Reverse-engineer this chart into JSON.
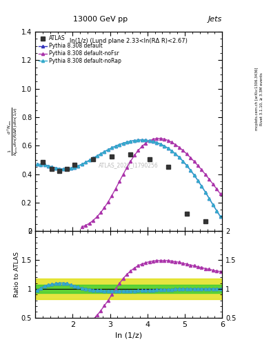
{
  "title": "13000 GeV pp",
  "title_right": "Jets",
  "subplot_title": "ln(1/z) (Lund plane 2.33<ln(RΔ R)<2.67)",
  "xlabel": "ln (1/z)",
  "ylabel_ratio": "Ratio to ATLAS",
  "watermark": "ATLAS_2020_I1790256",
  "rivet_label": "Rivet 3.1.10, ≥ 3.3M events",
  "arxiv_label": "[arXiv:1306.3436]",
  "mcplots_label": "mcplots.cern.ch",
  "ylim_main": [
    0.0,
    1.4
  ],
  "ylim_ratio": [
    0.5,
    2.0
  ],
  "xlim": [
    1.0,
    6.0
  ],
  "yticks_main": [
    0.0,
    0.2,
    0.4,
    0.6,
    0.8,
    1.0,
    1.2,
    1.4
  ],
  "yticks_ratio": [
    0.5,
    1.0,
    1.5,
    2.0
  ],
  "atlas_x": [
    1.2,
    1.45,
    1.65,
    1.85,
    2.05,
    2.55,
    3.05,
    3.55,
    4.05,
    4.55,
    5.05,
    5.55
  ],
  "atlas_y": [
    0.485,
    0.435,
    0.42,
    0.435,
    0.465,
    0.505,
    0.525,
    0.54,
    0.505,
    0.45,
    0.12,
    0.07
  ],
  "atlas_color": "#333333",
  "default_x": [
    1.05,
    1.15,
    1.25,
    1.35,
    1.45,
    1.55,
    1.65,
    1.75,
    1.85,
    1.95,
    2.05,
    2.15,
    2.25,
    2.35,
    2.45,
    2.55,
    2.65,
    2.75,
    2.85,
    2.95,
    3.05,
    3.15,
    3.25,
    3.35,
    3.45,
    3.55,
    3.65,
    3.75,
    3.85,
    3.95,
    4.05,
    4.15,
    4.25,
    4.35,
    4.45,
    4.55,
    4.65,
    4.75,
    4.85,
    4.95,
    5.05,
    5.15,
    5.25,
    5.35,
    5.45,
    5.55,
    5.65,
    5.75,
    5.85,
    5.95
  ],
  "default_y": [
    0.47,
    0.468,
    0.465,
    0.458,
    0.45,
    0.443,
    0.438,
    0.435,
    0.435,
    0.44,
    0.448,
    0.458,
    0.47,
    0.483,
    0.498,
    0.513,
    0.528,
    0.543,
    0.558,
    0.572,
    0.585,
    0.597,
    0.608,
    0.617,
    0.625,
    0.631,
    0.636,
    0.639,
    0.64,
    0.639,
    0.636,
    0.63,
    0.622,
    0.611,
    0.598,
    0.582,
    0.563,
    0.542,
    0.518,
    0.491,
    0.461,
    0.428,
    0.393,
    0.355,
    0.315,
    0.273,
    0.23,
    0.186,
    0.143,
    0.102
  ],
  "default_color": "#3333bb",
  "noFsr_x": [
    2.25,
    2.35,
    2.45,
    2.55,
    2.65,
    2.75,
    2.85,
    2.95,
    3.05,
    3.15,
    3.25,
    3.35,
    3.45,
    3.55,
    3.65,
    3.75,
    3.85,
    3.95,
    4.05,
    4.15,
    4.25,
    4.35,
    4.45,
    4.55,
    4.65,
    4.75,
    4.85,
    4.95,
    5.05,
    5.15,
    5.25,
    5.35,
    5.45,
    5.55,
    5.65,
    5.75,
    5.85,
    5.95
  ],
  "noFsr_y": [
    0.03,
    0.04,
    0.055,
    0.075,
    0.1,
    0.13,
    0.165,
    0.205,
    0.25,
    0.298,
    0.348,
    0.398,
    0.446,
    0.491,
    0.531,
    0.565,
    0.594,
    0.617,
    0.634,
    0.645,
    0.651,
    0.651,
    0.646,
    0.637,
    0.624,
    0.607,
    0.588,
    0.566,
    0.542,
    0.516,
    0.489,
    0.46,
    0.43,
    0.398,
    0.365,
    0.331,
    0.296,
    0.261
  ],
  "noFsr_color": "#aa33aa",
  "noRap_x": [
    1.05,
    1.15,
    1.25,
    1.35,
    1.45,
    1.55,
    1.65,
    1.75,
    1.85,
    1.95,
    2.05,
    2.15,
    2.25,
    2.35,
    2.45,
    2.55,
    2.65,
    2.75,
    2.85,
    2.95,
    3.05,
    3.15,
    3.25,
    3.35,
    3.45,
    3.55,
    3.65,
    3.75,
    3.85,
    3.95,
    4.05,
    4.15,
    4.25,
    4.35,
    4.45,
    4.55,
    4.65,
    4.75,
    4.85,
    4.95,
    5.05,
    5.15,
    5.25,
    5.35,
    5.45,
    5.55,
    5.65,
    5.75,
    5.85,
    5.95
  ],
  "noRap_y": [
    0.47,
    0.468,
    0.465,
    0.458,
    0.45,
    0.443,
    0.438,
    0.435,
    0.435,
    0.44,
    0.448,
    0.458,
    0.47,
    0.483,
    0.498,
    0.513,
    0.528,
    0.543,
    0.558,
    0.572,
    0.585,
    0.597,
    0.608,
    0.617,
    0.625,
    0.631,
    0.636,
    0.639,
    0.64,
    0.639,
    0.636,
    0.63,
    0.622,
    0.611,
    0.598,
    0.582,
    0.563,
    0.542,
    0.518,
    0.491,
    0.461,
    0.428,
    0.393,
    0.355,
    0.315,
    0.273,
    0.23,
    0.186,
    0.143,
    0.102
  ],
  "noRap_color": "#33aacc",
  "ratio_default_x": [
    1.05,
    1.15,
    1.25,
    1.35,
    1.45,
    1.55,
    1.65,
    1.75,
    1.85,
    1.95,
    2.05,
    2.15,
    2.25,
    2.35,
    2.45,
    2.55,
    2.65,
    2.75,
    2.85,
    2.95,
    3.05,
    3.15,
    3.25,
    3.35,
    3.45,
    3.55,
    3.65,
    3.75,
    3.85,
    3.95,
    4.05,
    4.15,
    4.25,
    4.35,
    4.45,
    4.55,
    4.65,
    4.75,
    4.85,
    4.95,
    5.05,
    5.15,
    5.25,
    5.35,
    5.45,
    5.55,
    5.65,
    5.75,
    5.85,
    5.95
  ],
  "ratio_default_y": [
    0.97,
    1.01,
    1.05,
    1.07,
    1.08,
    1.09,
    1.1,
    1.1,
    1.09,
    1.07,
    1.05,
    1.03,
    1.01,
    1.0,
    0.99,
    0.98,
    0.975,
    0.97,
    0.965,
    0.963,
    0.962,
    0.961,
    0.961,
    0.962,
    0.963,
    0.965,
    0.967,
    0.97,
    0.972,
    0.975,
    0.978,
    0.98,
    0.982,
    0.985,
    0.987,
    0.989,
    0.991,
    0.993,
    0.995,
    0.996,
    0.997,
    0.998,
    0.999,
    0.999,
    1.0,
    1.0,
    1.0,
    1.0,
    1.0,
    1.0
  ],
  "ratio_noFsr_x": [
    2.25,
    2.35,
    2.45,
    2.55,
    2.65,
    2.75,
    2.85,
    2.95,
    3.05,
    3.15,
    3.25,
    3.35,
    3.45,
    3.55,
    3.65,
    3.75,
    3.85,
    3.95,
    4.05,
    4.15,
    4.25,
    4.35,
    4.45,
    4.55,
    4.65,
    4.75,
    4.85,
    4.95,
    5.05,
    5.15,
    5.25,
    5.35,
    5.45,
    5.55,
    5.65,
    5.75,
    5.85,
    5.95
  ],
  "ratio_noFsr_y": [
    0.32,
    0.36,
    0.41,
    0.47,
    0.54,
    0.62,
    0.71,
    0.8,
    0.9,
    1.0,
    1.09,
    1.18,
    1.25,
    1.31,
    1.36,
    1.4,
    1.43,
    1.45,
    1.47,
    1.48,
    1.49,
    1.49,
    1.49,
    1.49,
    1.48,
    1.47,
    1.46,
    1.44,
    1.43,
    1.41,
    1.4,
    1.38,
    1.37,
    1.35,
    1.34,
    1.32,
    1.31,
    1.3
  ],
  "ratio_noRap_x": [
    1.05,
    1.15,
    1.25,
    1.35,
    1.45,
    1.55,
    1.65,
    1.75,
    1.85,
    1.95,
    2.05,
    2.15,
    2.25,
    2.35,
    2.45,
    2.55,
    2.65,
    2.75,
    2.85,
    2.95,
    3.05,
    3.15,
    3.25,
    3.35,
    3.45,
    3.55,
    3.65,
    3.75,
    3.85,
    3.95,
    4.05,
    4.15,
    4.25,
    4.35,
    4.45,
    4.55,
    4.65,
    4.75,
    4.85,
    4.95,
    5.05,
    5.15,
    5.25,
    5.35,
    5.45,
    5.55,
    5.65,
    5.75,
    5.85,
    5.95
  ],
  "ratio_noRap_y": [
    0.97,
    1.01,
    1.05,
    1.07,
    1.08,
    1.09,
    1.1,
    1.1,
    1.09,
    1.07,
    1.05,
    1.03,
    1.01,
    1.0,
    0.99,
    0.98,
    0.975,
    0.97,
    0.965,
    0.963,
    0.962,
    0.961,
    0.961,
    0.962,
    0.963,
    0.965,
    0.967,
    0.97,
    0.972,
    0.975,
    0.978,
    0.98,
    0.982,
    0.985,
    0.987,
    0.989,
    0.991,
    0.993,
    0.995,
    0.996,
    0.997,
    0.998,
    0.999,
    0.999,
    1.0,
    1.0,
    1.0,
    1.0,
    1.0,
    1.0
  ],
  "band_green_lo": 0.93,
  "band_green_hi": 1.07,
  "band_yellow_lo": 0.82,
  "band_yellow_hi": 1.18,
  "bg_color": "#ffffff"
}
